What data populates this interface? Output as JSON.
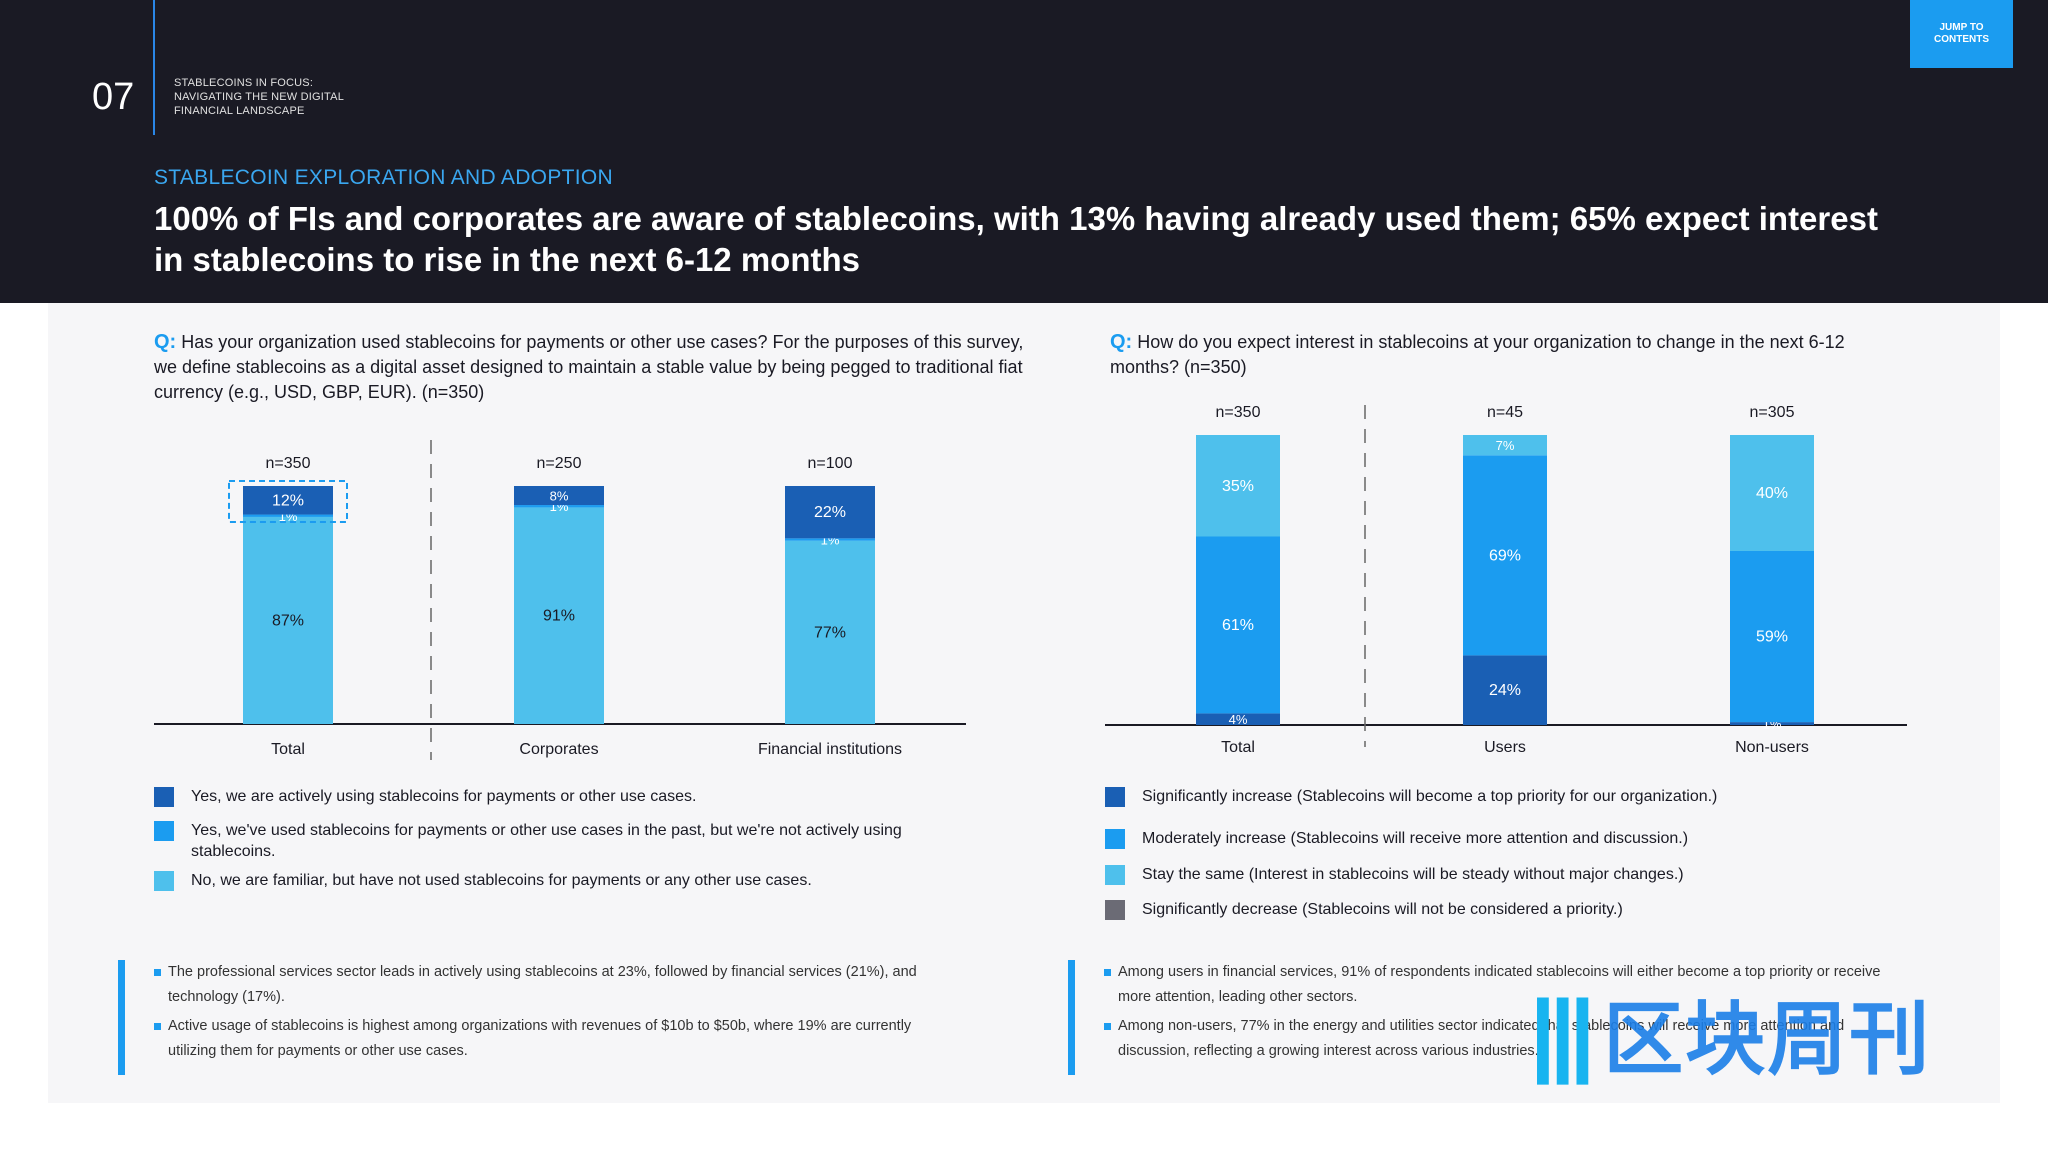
{
  "header": {
    "page_number": "07",
    "doc_title_lines": [
      "STABLECOINS IN FOCUS:",
      "NAVIGATING THE NEW DIGITAL",
      "FINANCIAL LANDSCAPE"
    ],
    "jump_lines": [
      "JUMP TO",
      "CONTENTS"
    ],
    "section": "STABLECOIN EXPLORATION AND ADOPTION",
    "headline": "100% of FIs and corporates are aware of stablecoins, with 13% having already used them; 65% expect interest in stablecoins to rise in the next 6-12 months"
  },
  "left": {
    "q_label": "Q:",
    "question": "Has your organization used stablecoins for payments or other use cases? For the purposes of this survey, we define stablecoins as a digital asset designed to maintain a stable value by being pegged to traditional fiat currency (e.g., USD, GBP, EUR). (n=350)",
    "legend": [
      "Yes, we are actively using stablecoins for payments or other use cases.",
      "Yes, we've used stablecoins for payments or other use cases in the past, but we're not actively using stablecoins.",
      "No, we are familiar, but have not used stablecoins for payments or any other use cases."
    ],
    "notes": [
      "The professional services sector leads in actively using stablecoins at 23%, followed by financial services (21%), and technology (17%).",
      "Active usage of stablecoins is highest among organizations with revenues of $10b to $50b, where 19% are currently utilizing them for payments or other use cases."
    ]
  },
  "right": {
    "q_label": "Q:",
    "question": "How do you expect interest in stablecoins at your organization to change in the next 6-12 months? (n=350)",
    "legend": [
      "Significantly increase (Stablecoins will become a top priority for our organization.)",
      "Moderately increase (Stablecoins will receive more attention and discussion.)",
      "Stay the same (Interest in stablecoins will be steady without major changes.)",
      "Significantly decrease (Stablecoins will not be considered a priority.)"
    ],
    "notes": [
      "Among users in financial services, 91% of respondents indicated stablecoins will either become a top priority or receive more attention, leading other sectors.",
      "Among non-users, 77% in the energy and utilities sector indicated that stablecoins will receive more attention and discussion, reflecting a growing interest across various industries."
    ]
  },
  "watermark": {
    "logo": "|||",
    "text": "区块周刊"
  },
  "colors": {
    "dark_blue": "#1a5fb4",
    "mid_blue": "#1b9cf0",
    "light_blue": "#4ec0ec",
    "grey": "#6b6b75"
  },
  "chart_data": [
    {
      "type": "bar",
      "stacked": true,
      "categories": [
        "Total",
        "Corporates",
        "Financial institutions"
      ],
      "n_labels": [
        "n=350",
        "n=250",
        "n=100"
      ],
      "series": [
        {
          "values": [
            87,
            91,
            77
          ],
          "color": "#4ec0ec"
        },
        {
          "values": [
            1,
            1,
            1
          ],
          "color": "#1b9cf0"
        },
        {
          "values": [
            12,
            8,
            22
          ],
          "color": "#1a5fb4"
        }
      ],
      "ylim": [
        0,
        100
      ]
    },
    {
      "type": "bar",
      "stacked": true,
      "categories": [
        "Total",
        "Users",
        "Non-users"
      ],
      "n_labels": [
        "n=350",
        "n=45",
        "n=305"
      ],
      "series": [
        {
          "values": [
            4,
            24,
            1
          ],
          "color": "#1a5fb4"
        },
        {
          "values": [
            61,
            69,
            59
          ],
          "color": "#1b9cf0"
        },
        {
          "values": [
            35,
            7,
            40
          ],
          "color": "#4ec0ec"
        }
      ],
      "ylim": [
        0,
        100
      ]
    }
  ]
}
